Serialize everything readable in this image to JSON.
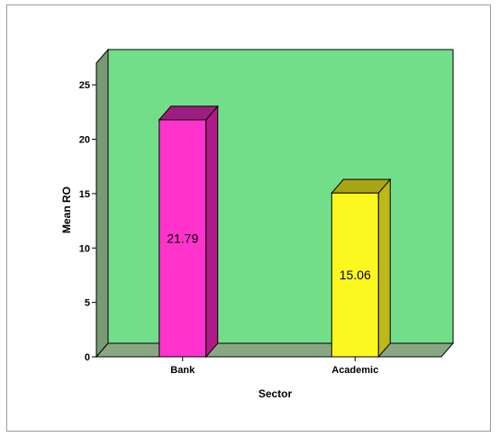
{
  "chart_data": {
    "type": "bar",
    "categories": [
      "Bank",
      "Academic"
    ],
    "values": [
      21.79,
      15.06
    ],
    "data_labels": [
      "21.79",
      "15.06"
    ],
    "xlabel": "Sector",
    "ylabel": "Mean RO",
    "ylim": [
      0,
      27
    ],
    "yticks": [
      0,
      5,
      10,
      15,
      20,
      25
    ],
    "ytick_labels": [
      "0",
      "5",
      "10",
      "15",
      "20",
      "25"
    ],
    "style": "3d",
    "colors": {
      "plot_back": "#72de8a",
      "floor": "#8aa784",
      "side_wall": "#7a9a74",
      "bars": [
        {
          "front": "#ff33cc",
          "side": "#b01a88",
          "top": "#9e1d80"
        },
        {
          "front": "#fcf81f",
          "side": "#bdb817",
          "top": "#a8a514"
        }
      ]
    }
  }
}
